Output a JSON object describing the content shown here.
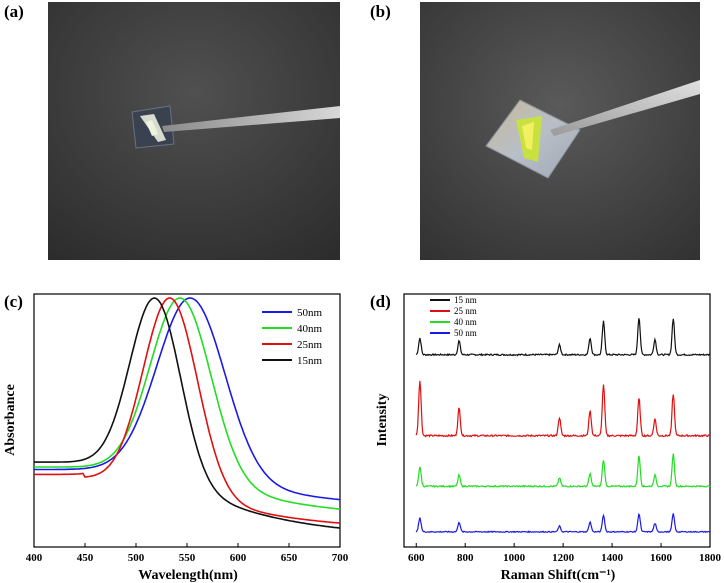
{
  "panel_labels": {
    "a": "(a)",
    "b": "(b)",
    "c": "(c)",
    "d": "(d)"
  },
  "chart_data": [
    {
      "type": "line",
      "panel": "(c)",
      "xlabel": "Wavelength(nm)",
      "ylabel": "Absorbance",
      "xlim": [
        400,
        700
      ],
      "xticks": [
        400,
        450,
        500,
        550,
        600,
        650,
        700
      ],
      "y_ticks_shown": false,
      "legend_position": "top-right",
      "series": [
        {
          "name": "50nm",
          "color": "#1a1ae6",
          "peak": 553,
          "width": 46,
          "baseline_start": 0.3,
          "baseline_end": 0.14,
          "min": 0.33
        },
        {
          "name": "40nm",
          "color": "#22dd22",
          "peak": 543,
          "width": 41,
          "baseline_start": 0.31,
          "baseline_end": 0.1,
          "min": 0.32
        },
        {
          "name": "25nm",
          "color": "#e01010",
          "peak": 533,
          "width": 37,
          "baseline_start": 0.28,
          "baseline_end": 0.05,
          "min": 0.25
        },
        {
          "name": "15nm",
          "color": "#111111",
          "peak": 518,
          "width": 34,
          "baseline_start": 0.33,
          "baseline_end": 0.02,
          "min": 0.33
        }
      ]
    },
    {
      "type": "line",
      "panel": "(d)",
      "xlabel": "Raman Shift(cm⁻¹)",
      "ylabel": "Intensity",
      "xlim": [
        550,
        1800
      ],
      "xticks": [
        600,
        800,
        1000,
        1200,
        1400,
        1600,
        1800
      ],
      "y_ticks_shown": false,
      "legend_position": "top-left",
      "peak_positions": [
        615,
        775,
        1185,
        1310,
        1365,
        1510,
        1575,
        1650
      ],
      "series": [
        {
          "name": "15 nm",
          "color": "#111111",
          "offset": 0.76,
          "scale": 0.9,
          "peak_heights": [
            0.12,
            0.1,
            0.07,
            0.12,
            0.24,
            0.27,
            0.11,
            0.26
          ]
        },
        {
          "name": "25 nm",
          "color": "#e01010",
          "offset": 0.44,
          "scale": 1.0,
          "peak_heights": [
            0.4,
            0.2,
            0.13,
            0.18,
            0.37,
            0.27,
            0.12,
            0.3
          ]
        },
        {
          "name": "40 nm",
          "color": "#22dd22",
          "offset": 0.24,
          "scale": 0.8,
          "peak_heights": [
            0.14,
            0.08,
            0.06,
            0.09,
            0.19,
            0.22,
            0.08,
            0.23
          ]
        },
        {
          "name": "50 nm",
          "color": "#1a1ae6",
          "offset": 0.06,
          "scale": 0.6,
          "peak_heights": [
            0.1,
            0.07,
            0.04,
            0.07,
            0.12,
            0.13,
            0.06,
            0.13
          ]
        }
      ]
    }
  ]
}
